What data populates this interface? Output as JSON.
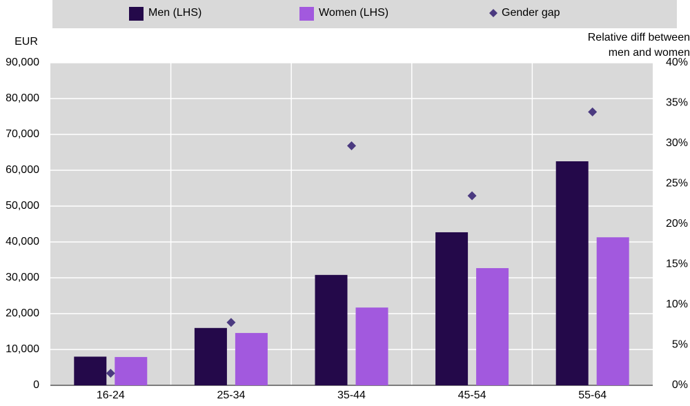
{
  "chart_data": {
    "type": "bar",
    "categories": [
      "16-24",
      "25-34",
      "35-44",
      "45-54",
      "55-64"
    ],
    "series": [
      {
        "name": "Men (LHS)",
        "color": "#24094a",
        "values": [
          8000,
          16000,
          30800,
          42700,
          62500
        ]
      },
      {
        "name": "Women (LHS)",
        "color": "#a259de",
        "values": [
          7900,
          14600,
          21700,
          32700,
          41300
        ]
      },
      {
        "name": "Gender gap",
        "color": "#4b3a80",
        "axis": "y2",
        "marker": "diamond",
        "values": [
          1.5,
          7.8,
          29.7,
          23.5,
          33.9
        ]
      }
    ],
    "ylabel": "EUR",
    "y2label": [
      "Relative diff between",
      "men and women"
    ],
    "ylim": [
      0,
      90000
    ],
    "yticks": [
      {
        "value": 0,
        "label": "0"
      },
      {
        "value": 10000,
        "label": "10,000"
      },
      {
        "value": 20000,
        "label": "20,000"
      },
      {
        "value": 30000,
        "label": "30,000"
      },
      {
        "value": 40000,
        "label": "40,000"
      },
      {
        "value": 50000,
        "label": "50,000"
      },
      {
        "value": 60000,
        "label": "60,000"
      },
      {
        "value": 70000,
        "label": "70,000"
      },
      {
        "value": 80000,
        "label": "80,000"
      },
      {
        "value": 90000,
        "label": "90,000"
      }
    ],
    "y2lim": [
      0,
      40
    ],
    "y2ticks": [
      {
        "value": 0,
        "label": "0%"
      },
      {
        "value": 5,
        "label": "5%"
      },
      {
        "value": 10,
        "label": "10%"
      },
      {
        "value": 15,
        "label": "15%"
      },
      {
        "value": 20,
        "label": "20%"
      },
      {
        "value": 25,
        "label": "25%"
      },
      {
        "value": 30,
        "label": "30%"
      },
      {
        "value": 35,
        "label": "35%"
      },
      {
        "value": 40,
        "label": "40%"
      }
    ],
    "grid": true,
    "legend": "top"
  }
}
